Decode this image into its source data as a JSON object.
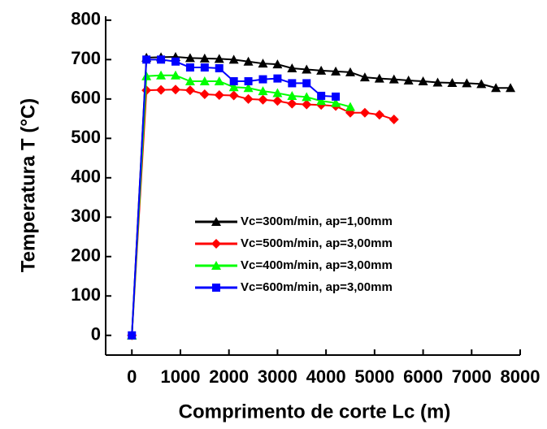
{
  "chart_data": {
    "type": "line",
    "x_label": "Comprimento de corte Lc (m)",
    "y_label": "Temperatura T (°C)",
    "xlim": [
      -540,
      8000
    ],
    "ylim": [
      -50,
      810
    ],
    "xticks": [
      0,
      1000,
      2000,
      3000,
      4000,
      5000,
      6000,
      7000,
      8000
    ],
    "yticks": [
      0,
      100,
      200,
      300,
      400,
      500,
      600,
      700,
      800
    ],
    "series": [
      {
        "name": "Vc=300m/min, ap=1,00mm",
        "color": "#000000",
        "marker": "triangle",
        "x": [
          0,
          300,
          600,
          900,
          1200,
          1500,
          1800,
          2100,
          2400,
          2700,
          3000,
          3300,
          3600,
          3900,
          4200,
          4500,
          4800,
          5100,
          5400,
          5700,
          6000,
          6300,
          6600,
          6900,
          7200,
          7500,
          7800
        ],
        "values": [
          0,
          705,
          706,
          707,
          704,
          703,
          702,
          700,
          695,
          690,
          688,
          678,
          675,
          672,
          670,
          668,
          655,
          652,
          650,
          647,
          645,
          642,
          641,
          640,
          638,
          628,
          628
        ]
      },
      {
        "name": "Vc=500m/min, ap=3,00mm",
        "color": "#ff0000",
        "marker": "diamond",
        "x": [
          0,
          300,
          600,
          900,
          1200,
          1500,
          1800,
          2100,
          2400,
          2700,
          3000,
          3300,
          3600,
          3900,
          4200,
          4500,
          4800,
          5100,
          5400
        ],
        "values": [
          0,
          622,
          623,
          624,
          622,
          612,
          610,
          609,
          600,
          598,
          595,
          588,
          586,
          585,
          582,
          565,
          565,
          560,
          548
        ]
      },
      {
        "name": "Vc=400m/min, ap=3,00mm",
        "color": "#00ff00",
        "marker": "triangle",
        "x": [
          0,
          300,
          600,
          900,
          1200,
          1500,
          1800,
          2100,
          2400,
          2700,
          3000,
          3300,
          3600,
          3900,
          4200,
          4500
        ],
        "values": [
          0,
          658,
          660,
          660,
          645,
          645,
          645,
          630,
          628,
          620,
          615,
          608,
          605,
          595,
          590,
          580
        ]
      },
      {
        "name": "Vc=600m/min, ap=3,00mm",
        "color": "#0000ff",
        "marker": "square",
        "x": [
          0,
          300,
          600,
          900,
          1200,
          1500,
          1800,
          2100,
          2400,
          2700,
          3000,
          3300,
          3600,
          3900,
          4200
        ],
        "values": [
          0,
          700,
          700,
          695,
          680,
          680,
          678,
          645,
          645,
          650,
          652,
          640,
          640,
          608,
          606
        ]
      }
    ]
  }
}
